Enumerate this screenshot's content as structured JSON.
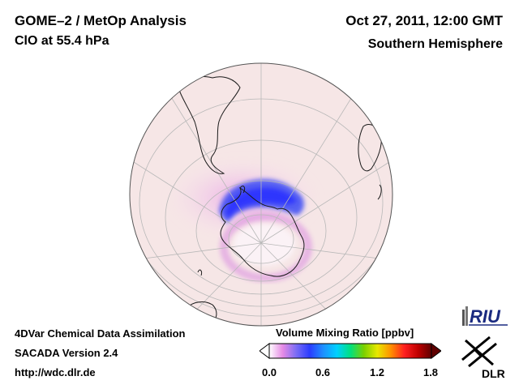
{
  "header": {
    "title": "GOME–2 / MetOp Analysis",
    "species": "ClO at 55.4 hPa",
    "datetime": "Oct 27, 2011, 12:00 GMT",
    "region": "Southern Hemisphere"
  },
  "footer": {
    "line1": "4DVar Chemical Data Assimilation",
    "line2": "SACADA Version 2.4",
    "line3": "http://wdc.dlr.de"
  },
  "colorbar": {
    "title": "Volume Mixing Ratio [ppbv]",
    "ticks": [
      "0.0",
      "0.6",
      "1.2",
      "1.8"
    ],
    "range": [
      0.0,
      1.8
    ],
    "colors": [
      "#ffffff",
      "#e58ae5",
      "#7a6cf5",
      "#2a3cff",
      "#1e90ff",
      "#00d0ff",
      "#00e080",
      "#7ad000",
      "#e8e800",
      "#ff9000",
      "#ff2020",
      "#c00000",
      "#600000"
    ]
  },
  "logos": {
    "riu": "RIU",
    "dlr": "DLR"
  },
  "map": {
    "projection": "orthographic",
    "hemisphere": "south",
    "background_color": "#f6e6e6",
    "enhancement_color": "#3b4cf5"
  }
}
